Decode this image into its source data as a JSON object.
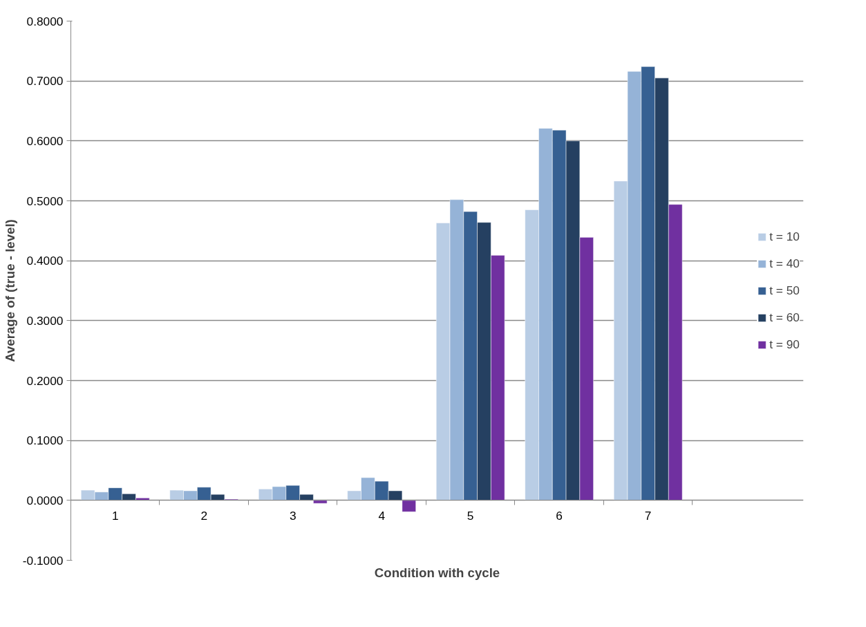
{
  "chart_data": {
    "type": "bar",
    "xlabel": "Condition with cycle",
    "ylabel": "Average of (true - level)",
    "categories": [
      "1",
      "2",
      "3",
      "4",
      "5",
      "6",
      "7"
    ],
    "series": [
      {
        "name": "t = 10",
        "color": "#b9cde5",
        "values": [
          0.017,
          0.017,
          0.019,
          0.016,
          0.463,
          0.485,
          0.533
        ]
      },
      {
        "name": "t = 40",
        "color": "#95b3d7",
        "values": [
          0.014,
          0.016,
          0.023,
          0.038,
          0.502,
          0.621,
          0.716
        ]
      },
      {
        "name": "t = 50",
        "color": "#366092",
        "values": [
          0.021,
          0.022,
          0.025,
          0.032,
          0.482,
          0.618,
          0.724
        ]
      },
      {
        "name": "t = 60",
        "color": "#254061",
        "values": [
          0.011,
          0.01,
          0.01,
          0.016,
          0.464,
          0.6,
          0.705
        ]
      },
      {
        "name": "t = 90",
        "color": "#7030a0",
        "values": [
          0.004,
          0.002,
          -0.005,
          -0.019,
          0.409,
          0.439,
          0.494
        ]
      }
    ],
    "ylim": [
      -0.1,
      0.8
    ],
    "yticks": [
      {
        "value": -0.1,
        "label": "-0.1000"
      },
      {
        "value": 0,
        "label": "0.0000"
      },
      {
        "value": 0.1,
        "label": "0.1000"
      },
      {
        "value": 0.2,
        "label": "0.2000"
      },
      {
        "value": 0.3,
        "label": "0.3000"
      },
      {
        "value": 0.4,
        "label": "0.4000"
      },
      {
        "value": 0.5,
        "label": "0.5000"
      },
      {
        "value": 0.6,
        "label": "0.6000"
      },
      {
        "value": 0.7,
        "label": "0.7000"
      },
      {
        "value": 0.8,
        "label": "0.8000"
      }
    ],
    "grid": "y",
    "legend": "right"
  }
}
